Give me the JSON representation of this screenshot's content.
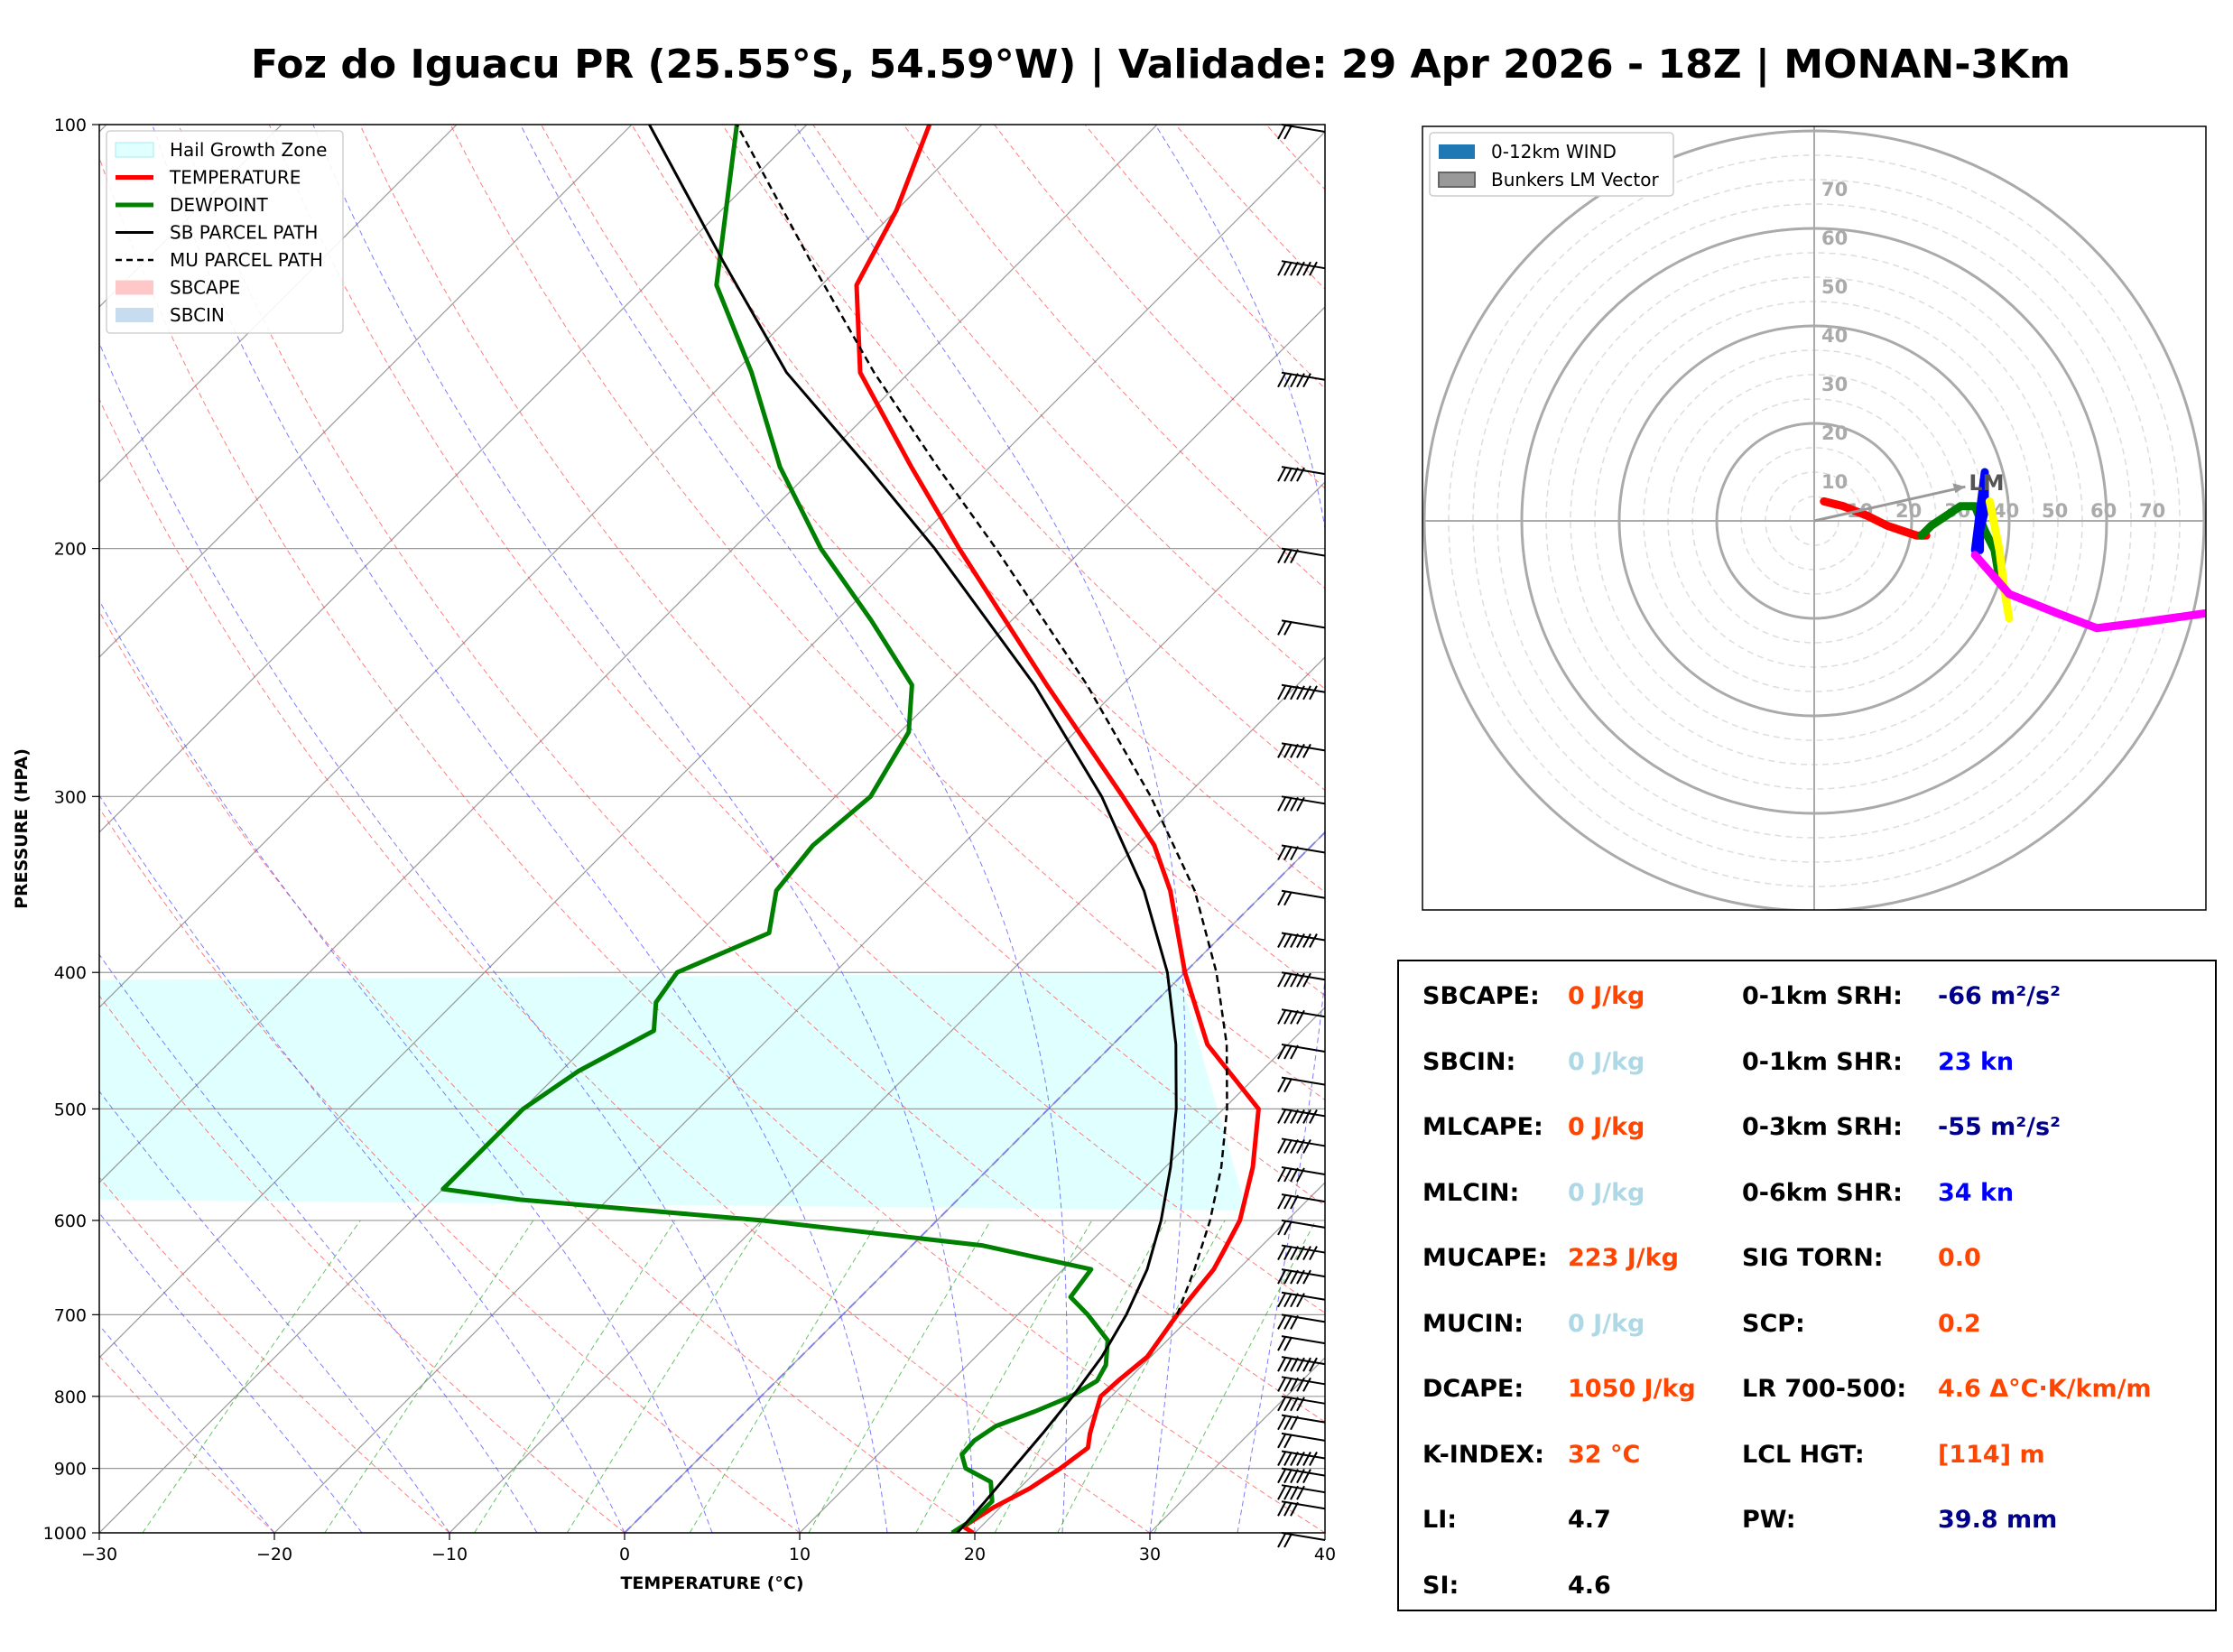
{
  "title": "Foz do Iguacu PR (25.55°S, 54.59°W) | Validade: 29 Apr 2026 - 18Z | MONAN-3Km",
  "chart_data": [
    {
      "type": "line",
      "subtype": "skew-T log-P sounding",
      "xlabel": "TEMPERATURE (°C)",
      "ylabel": "PRESSURE (HPA)",
      "xlim": [
        -30,
        40
      ],
      "ylim": [
        1000,
        100
      ],
      "y_scale": "log",
      "x_ticks": [
        "−30",
        "−20",
        "−10",
        "0",
        "10",
        "20",
        "30",
        "40"
      ],
      "y_ticks": [
        "100",
        "200",
        "300",
        "400",
        "500",
        "600",
        "700",
        "800",
        "900",
        "1000"
      ],
      "grid": true,
      "legend_position": "top-left",
      "legend": [
        {
          "label": "Hail Growth Zone",
          "color": "#e0ffff",
          "style": "patch"
        },
        {
          "label": "TEMPERATURE",
          "color": "#ff0000",
          "style": "solid-thick"
        },
        {
          "label": "DEWPOINT",
          "color": "#008000",
          "style": "solid-thick"
        },
        {
          "label": "SB PARCEL PATH",
          "color": "#000000",
          "style": "solid"
        },
        {
          "label": "MU PARCEL PATH",
          "color": "#000000",
          "style": "dashed"
        },
        {
          "label": "SBCAPE",
          "color": "#ffc8c8",
          "style": "patch"
        },
        {
          "label": "SBCIN",
          "color": "#c8dcf0",
          "style": "patch"
        }
      ],
      "series": [
        {
          "name": "TEMPERATURE",
          "color": "#ff0000",
          "points": [
            [
              1000,
              19.9
            ],
            [
              990,
              19.0
            ],
            [
              960,
              19.6
            ],
            [
              930,
              20.6
            ],
            [
              900,
              21.2
            ],
            [
              870,
              21.6
            ],
            [
              850,
              20.9
            ],
            [
              820,
              20.0
            ],
            [
              800,
              19.4
            ],
            [
              780,
              19.5
            ],
            [
              750,
              19.8
            ],
            [
              700,
              19.1
            ],
            [
              680,
              18.9
            ],
            [
              650,
              18.6
            ],
            [
              630,
              18.1
            ],
            [
              600,
              17.3
            ],
            [
              550,
              15.0
            ],
            [
              500,
              12.0
            ],
            [
              450,
              5.4
            ],
            [
              400,
              0.0
            ],
            [
              350,
              -5.5
            ],
            [
              325,
              -9.0
            ],
            [
              300,
              -13.6
            ],
            [
              250,
              -24.3
            ],
            [
              200,
              -37.1
            ],
            [
              175,
              -44.5
            ],
            [
              150,
              -52.8
            ],
            [
              130,
              -58.0
            ],
            [
              115,
              -60.0
            ],
            [
              100,
              -63.0
            ]
          ]
        },
        {
          "name": "DEWPOINT",
          "color": "#008000",
          "points": [
            [
              1000,
              18.7
            ],
            [
              980,
              19.1
            ],
            [
              950,
              19.2
            ],
            [
              920,
              18.0
            ],
            [
              900,
              15.8
            ],
            [
              880,
              14.8
            ],
            [
              860,
              14.7
            ],
            [
              840,
              15.1
            ],
            [
              820,
              16.5
            ],
            [
              800,
              17.7
            ],
            [
              780,
              18.3
            ],
            [
              760,
              17.9
            ],
            [
              730,
              16.6
            ],
            [
              700,
              14.0
            ],
            [
              680,
              12.0
            ],
            [
              650,
              11.6
            ],
            [
              625,
              4.0
            ],
            [
              600,
              -10.0
            ],
            [
              580,
              -25.0
            ],
            [
              570,
              -30.0
            ],
            [
              500,
              -30.0
            ],
            [
              470,
              -29.0
            ],
            [
              440,
              -27.0
            ],
            [
              420,
              -28.5
            ],
            [
              400,
              -29.0
            ],
            [
              375,
              -26.0
            ],
            [
              350,
              -28.0
            ],
            [
              325,
              -28.5
            ],
            [
              300,
              -28.0
            ],
            [
              270,
              -29.5
            ],
            [
              250,
              -32.0
            ],
            [
              225,
              -38.0
            ],
            [
              200,
              -45.0
            ],
            [
              175,
              -52.0
            ],
            [
              150,
              -59.0
            ],
            [
              130,
              -66.0
            ],
            [
              100,
              -74.0
            ]
          ]
        },
        {
          "name": "SB PARCEL PATH",
          "color": "#000000",
          "points": [
            [
              1000,
              19.0
            ],
            [
              950,
              18.8
            ],
            [
              900,
              18.5
            ],
            [
              850,
              18.2
            ],
            [
              800,
              17.8
            ],
            [
              750,
              17.2
            ],
            [
              700,
              16.2
            ],
            [
              650,
              14.8
            ],
            [
              600,
              12.8
            ],
            [
              550,
              10.3
            ],
            [
              500,
              7.3
            ],
            [
              450,
              3.6
            ],
            [
              400,
              -1.0
            ],
            [
              350,
              -7.0
            ],
            [
              300,
              -14.8
            ],
            [
              250,
              -25.0
            ],
            [
              200,
              -38.5
            ],
            [
              175,
              -47.0
            ],
            [
              150,
              -57.0
            ],
            [
              125,
              -67.0
            ],
            [
              100,
              -79.0
            ]
          ]
        },
        {
          "name": "MU PARCEL PATH",
          "color": "#000000",
          "points": [
            [
              700,
              19.1
            ],
            [
              650,
              17.5
            ],
            [
              600,
              15.6
            ],
            [
              550,
              13.2
            ],
            [
              500,
              10.2
            ],
            [
              450,
              6.5
            ],
            [
              400,
              1.8
            ],
            [
              350,
              -4.1
            ],
            [
              300,
              -12.0
            ],
            [
              250,
              -22.0
            ],
            [
              200,
              -35.0
            ],
            [
              175,
              -43.0
            ],
            [
              150,
              -52.0
            ],
            [
              125,
              -62.0
            ],
            [
              100,
              -74.0
            ]
          ]
        }
      ],
      "hail_growth_zone_hpa": [
        405,
        580
      ],
      "wind_barbs_hpa": [
        1000,
        950,
        925,
        900,
        875,
        850,
        825,
        800,
        775,
        750,
        725,
        700,
        675,
        650,
        625,
        600,
        575,
        550,
        525,
        500,
        475,
        450,
        425,
        400,
        375,
        350,
        325,
        300,
        275,
        250,
        225,
        200,
        175,
        150,
        125,
        100
      ]
    },
    {
      "type": "line",
      "subtype": "hodograph",
      "legend_position": "top-left",
      "legend": [
        {
          "label": "0-12km WIND",
          "color": "#1f77b4"
        },
        {
          "label": "Bunkers LM Vector",
          "color": "#999999"
        }
      ],
      "ring_labels": [
        "10",
        "20",
        "30",
        "40",
        "50",
        "60",
        "70"
      ],
      "bunkers_label": "LM",
      "bunkers_lm_vector": [
        31,
        7
      ],
      "segments": [
        {
          "color": "#ff0000",
          "points": [
            [
              2,
              4
            ],
            [
              6,
              3
            ],
            [
              11,
              1
            ],
            [
              15,
              -1
            ],
            [
              18,
              -2
            ],
            [
              21,
              -3
            ],
            [
              23,
              -3
            ]
          ]
        },
        {
          "color": "#008000",
          "points": [
            [
              22,
              -3
            ],
            [
              24,
              -1
            ],
            [
              27,
              1
            ],
            [
              30,
              3
            ],
            [
              33,
              3
            ],
            [
              35,
              -2
            ],
            [
              37,
              -6
            ],
            [
              38,
              -12
            ]
          ]
        },
        {
          "color": "#0000ff",
          "points": [
            [
              34,
              -6
            ],
            [
              34,
              -2
            ],
            [
              35,
              2
            ],
            [
              35,
              6
            ],
            [
              35,
              10
            ],
            [
              34,
              2
            ],
            [
              33,
              -6
            ]
          ]
        },
        {
          "color": "#ffff00",
          "points": [
            [
              36,
              4
            ],
            [
              38,
              -6
            ],
            [
              39,
              -14
            ],
            [
              40,
              -20
            ]
          ]
        },
        {
          "color": "#ff00ff",
          "points": [
            [
              33,
              -7
            ],
            [
              40,
              -15
            ],
            [
              50,
              -19
            ],
            [
              58,
              -22
            ],
            [
              66,
              -21
            ],
            [
              80,
              -19
            ]
          ]
        }
      ]
    }
  ],
  "indices": {
    "left": [
      {
        "label": "SBCAPE:",
        "value": "0 J/kg",
        "color": "#ff4500"
      },
      {
        "label": "SBCIN:",
        "value": "0 J/kg",
        "color": "#add8e6"
      },
      {
        "label": "MLCAPE:",
        "value": "0 J/kg",
        "color": "#ff4500"
      },
      {
        "label": "MLCIN:",
        "value": "0 J/kg",
        "color": "#add8e6"
      },
      {
        "label": "MUCAPE:",
        "value": "223 J/kg",
        "color": "#ff4500"
      },
      {
        "label": "MUCIN:",
        "value": "0 J/kg",
        "color": "#add8e6"
      },
      {
        "label": "DCAPE:",
        "value": "1050 J/kg",
        "color": "#ff4500"
      },
      {
        "label": "K-INDEX:",
        "value": "32 °C",
        "color": "#ff4500"
      },
      {
        "label": "LI:",
        "value": "4.7",
        "color": "#000000"
      },
      {
        "label": "SI:",
        "value": "4.6",
        "color": "#000000"
      }
    ],
    "right": [
      {
        "label": "0-1km SRH:",
        "value": "-66 m²/s²",
        "color": "#00008b"
      },
      {
        "label": "0-1km SHR:",
        "value": "23 kn",
        "color": "#0000ff"
      },
      {
        "label": "0-3km SRH:",
        "value": "-55 m²/s²",
        "color": "#00008b"
      },
      {
        "label": "0-6km SHR:",
        "value": "34 kn",
        "color": "#0000ff"
      },
      {
        "label": "SIG TORN:",
        "value": "0.0",
        "color": "#ff4500"
      },
      {
        "label": "SCP:",
        "value": "0.2",
        "color": "#ff4500"
      },
      {
        "label": "LR 700-500:",
        "value": "4.6 Δ°C·K/km/m",
        "color": "#ff4500"
      },
      {
        "label": "LCL HGT:",
        "value": "[114] m",
        "color": "#ff4500"
      },
      {
        "label": "PW:",
        "value": "39.8 mm",
        "color": "#00008b"
      }
    ]
  }
}
